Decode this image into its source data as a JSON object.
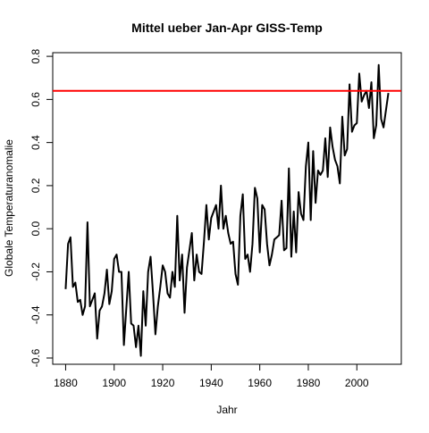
{
  "chart_data": {
    "type": "line",
    "title": "Mittel ueber Jan-Apr GISS-Temp",
    "x_label": "Jahr",
    "y_label": "Globale Temperaturanomalie",
    "x": [
      1880,
      1881,
      1882,
      1883,
      1884,
      1885,
      1886,
      1887,
      1888,
      1889,
      1890,
      1891,
      1892,
      1893,
      1894,
      1895,
      1896,
      1897,
      1898,
      1899,
      1900,
      1901,
      1902,
      1903,
      1904,
      1905,
      1906,
      1907,
      1908,
      1909,
      1910,
      1911,
      1912,
      1913,
      1914,
      1915,
      1916,
      1917,
      1918,
      1919,
      1920,
      1921,
      1922,
      1923,
      1924,
      1925,
      1926,
      1927,
      1928,
      1929,
      1930,
      1931,
      1932,
      1933,
      1934,
      1935,
      1936,
      1937,
      1938,
      1939,
      1940,
      1941,
      1942,
      1943,
      1944,
      1945,
      1946,
      1947,
      1948,
      1949,
      1950,
      1951,
      1952,
      1953,
      1954,
      1955,
      1956,
      1957,
      1958,
      1959,
      1960,
      1961,
      1962,
      1963,
      1964,
      1965,
      1966,
      1967,
      1968,
      1969,
      1970,
      1971,
      1972,
      1973,
      1974,
      1975,
      1976,
      1977,
      1978,
      1979,
      1980,
      1981,
      1982,
      1983,
      1984,
      1985,
      1986,
      1987,
      1988,
      1989,
      1990,
      1991,
      1992,
      1993,
      1994,
      1995,
      1996,
      1997,
      1998,
      1999,
      2000,
      2001,
      2002,
      2003,
      2004,
      2005,
      2006,
      2007,
      2008,
      2009,
      2010,
      2011,
      2012,
      2013
    ],
    "values": [
      -0.28,
      -0.07,
      -0.04,
      -0.27,
      -0.25,
      -0.34,
      -0.33,
      -0.4,
      -0.36,
      0.03,
      -0.36,
      -0.33,
      -0.3,
      -0.51,
      -0.38,
      -0.36,
      -0.3,
      -0.19,
      -0.35,
      -0.29,
      -0.14,
      -0.12,
      -0.2,
      -0.2,
      -0.54,
      -0.37,
      -0.2,
      -0.44,
      -0.45,
      -0.55,
      -0.45,
      -0.59,
      -0.29,
      -0.45,
      -0.2,
      -0.13,
      -0.3,
      -0.49,
      -0.36,
      -0.27,
      -0.17,
      -0.2,
      -0.3,
      -0.32,
      -0.2,
      -0.27,
      0.06,
      -0.24,
      -0.12,
      -0.39,
      -0.18,
      -0.1,
      -0.02,
      -0.24,
      -0.12,
      -0.2,
      -0.21,
      -0.06,
      0.11,
      -0.05,
      0.05,
      0.08,
      0.11,
      0.0,
      0.2,
      0.0,
      0.06,
      -0.02,
      -0.07,
      -0.06,
      -0.21,
      -0.26,
      0.06,
      0.16,
      -0.14,
      -0.12,
      -0.2,
      -0.07,
      0.19,
      0.14,
      -0.11,
      0.11,
      0.09,
      -0.07,
      -0.17,
      -0.12,
      -0.05,
      -0.04,
      -0.03,
      0.13,
      -0.1,
      -0.09,
      0.28,
      -0.13,
      0.08,
      -0.11,
      0.17,
      0.07,
      0.04,
      0.29,
      0.4,
      0.04,
      0.36,
      0.12,
      0.27,
      0.25,
      0.27,
      0.42,
      0.24,
      0.47,
      0.38,
      0.32,
      0.29,
      0.21,
      0.52,
      0.34,
      0.37,
      0.67,
      0.45,
      0.48,
      0.49,
      0.72,
      0.59,
      0.62,
      0.64,
      0.56,
      0.68,
      0.42,
      0.48,
      0.76,
      0.51,
      0.47,
      0.55,
      0.63
    ],
    "color": "#000000",
    "hline": 0.64,
    "hline_color": "#ff0000",
    "xlim": [
      1874.68,
      2018.32
    ],
    "xticks": [
      1880,
      1900,
      1920,
      1940,
      1960,
      1980,
      2000
    ],
    "ylim": [
      -0.629,
      0.817
    ],
    "yticks": [
      -0.6,
      -0.4,
      -0.2,
      {
        "value": 0,
        "label": "0.0"
      },
      0.2,
      0.4,
      0.6,
      0.8
    ]
  }
}
